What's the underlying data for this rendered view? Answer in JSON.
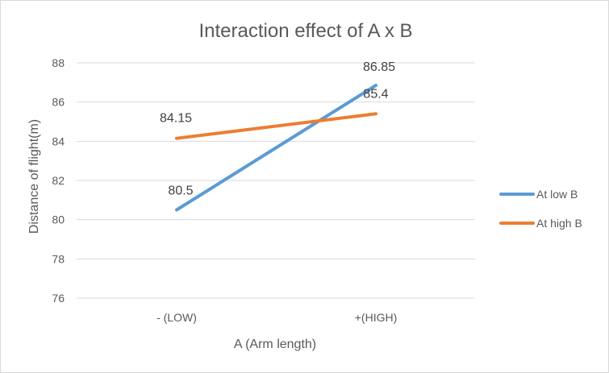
{
  "chart_data": {
    "type": "line",
    "title": "Interaction effect of A x B",
    "xlabel": "A (Arm length)",
    "ylabel": "Distance of flight(m)",
    "categories": [
      "- (LOW)",
      "+(HIGH)"
    ],
    "ylim": [
      76,
      88
    ],
    "yticks": [
      76,
      78,
      80,
      82,
      84,
      86,
      88
    ],
    "grid": true,
    "legend_position": "right",
    "series": [
      {
        "name": "At low B",
        "values": [
          80.5,
          86.85
        ],
        "labels": [
          "80.5",
          "86.85"
        ],
        "color": "#5b9bd5"
      },
      {
        "name": "At high B",
        "values": [
          84.15,
          85.4
        ],
        "labels": [
          "84.15",
          "85.4"
        ],
        "color": "#ed7d31"
      }
    ]
  }
}
